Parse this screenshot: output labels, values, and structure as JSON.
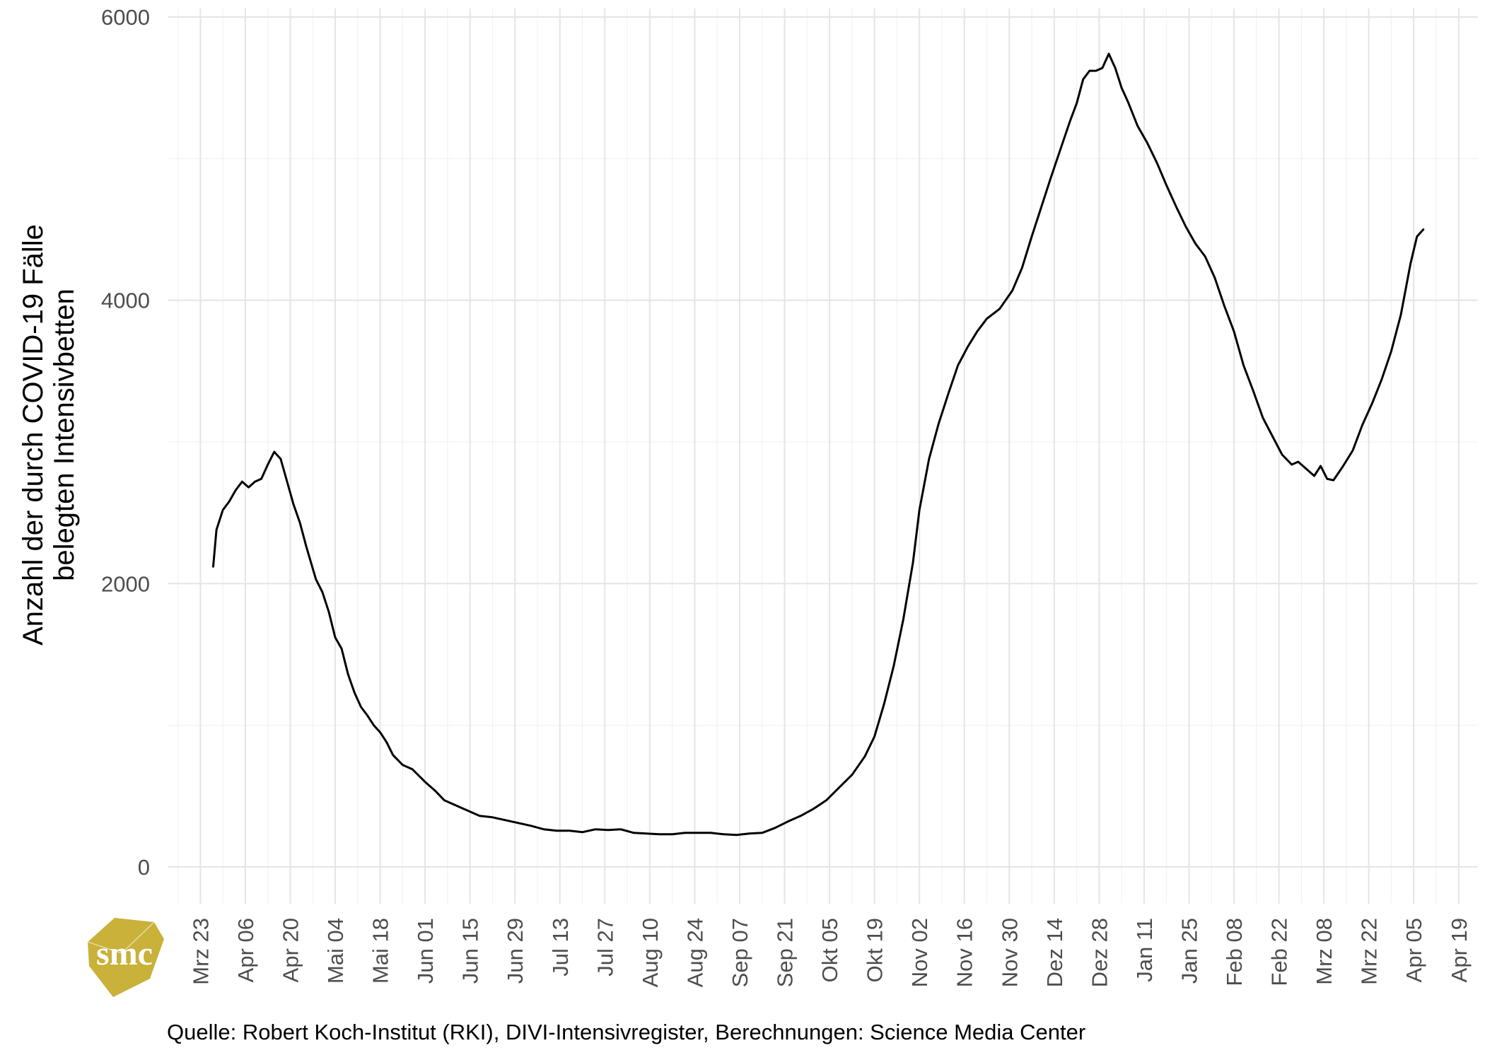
{
  "chart_data": {
    "type": "line",
    "title": "",
    "xlabel": "",
    "ylabel": "Anzahl der durch COVID-19 Fälle\nbelegten Intensivbetten",
    "ylim": [
      -260,
      6060
    ],
    "xlim": [
      "2020-03-13",
      "2021-04-25"
    ],
    "y_ticks": [
      0,
      2000,
      4000,
      6000
    ],
    "x_ticks": [
      {
        "date": "2020-03-23",
        "label": "Mrz 23"
      },
      {
        "date": "2020-04-06",
        "label": "Apr 06"
      },
      {
        "date": "2020-04-20",
        "label": "Apr 20"
      },
      {
        "date": "2020-05-04",
        "label": "Mai 04"
      },
      {
        "date": "2020-05-18",
        "label": "Mai 18"
      },
      {
        "date": "2020-06-01",
        "label": "Jun 01"
      },
      {
        "date": "2020-06-15",
        "label": "Jun 15"
      },
      {
        "date": "2020-06-29",
        "label": "Jun 29"
      },
      {
        "date": "2020-07-13",
        "label": "Jul 13"
      },
      {
        "date": "2020-07-27",
        "label": "Jul 27"
      },
      {
        "date": "2020-08-10",
        "label": "Aug 10"
      },
      {
        "date": "2020-08-24",
        "label": "Aug 24"
      },
      {
        "date": "2020-09-07",
        "label": "Sep 07"
      },
      {
        "date": "2020-09-21",
        "label": "Sep 21"
      },
      {
        "date": "2020-10-05",
        "label": "Okt 05"
      },
      {
        "date": "2020-10-19",
        "label": "Okt 19"
      },
      {
        "date": "2020-11-02",
        "label": "Nov 02"
      },
      {
        "date": "2020-11-16",
        "label": "Nov 16"
      },
      {
        "date": "2020-11-30",
        "label": "Nov 30"
      },
      {
        "date": "2020-12-14",
        "label": "Dez 14"
      },
      {
        "date": "2020-12-28",
        "label": "Dez 28"
      },
      {
        "date": "2021-01-11",
        "label": "Jan 11"
      },
      {
        "date": "2021-01-25",
        "label": "Jan 25"
      },
      {
        "date": "2021-02-08",
        "label": "Feb 08"
      },
      {
        "date": "2021-02-22",
        "label": "Feb 22"
      },
      {
        "date": "2021-03-08",
        "label": "Mrz 08"
      },
      {
        "date": "2021-03-22",
        "label": "Mrz 22"
      },
      {
        "date": "2021-04-05",
        "label": "Apr 05"
      },
      {
        "date": "2021-04-19",
        "label": "Apr 19"
      }
    ],
    "grid": true,
    "legend": "none",
    "series": [
      {
        "color": "#000000",
        "points": [
          [
            "2020-03-27",
            2120
          ],
          [
            "2020-03-28",
            2380
          ],
          [
            "2020-03-30",
            2520
          ],
          [
            "2020-04-01",
            2580
          ],
          [
            "2020-04-03",
            2660
          ],
          [
            "2020-04-05",
            2720
          ],
          [
            "2020-04-07",
            2680
          ],
          [
            "2020-04-09",
            2720
          ],
          [
            "2020-04-11",
            2740
          ],
          [
            "2020-04-13",
            2840
          ],
          [
            "2020-04-15",
            2930
          ],
          [
            "2020-04-17",
            2880
          ],
          [
            "2020-04-19",
            2720
          ],
          [
            "2020-04-21",
            2560
          ],
          [
            "2020-04-23",
            2430
          ],
          [
            "2020-04-25",
            2260
          ],
          [
            "2020-04-28",
            2030
          ],
          [
            "2020-04-30",
            1940
          ],
          [
            "2020-05-02",
            1800
          ],
          [
            "2020-05-04",
            1620
          ],
          [
            "2020-05-06",
            1540
          ],
          [
            "2020-05-08",
            1360
          ],
          [
            "2020-05-10",
            1230
          ],
          [
            "2020-05-12",
            1130
          ],
          [
            "2020-05-14",
            1070
          ],
          [
            "2020-05-16",
            1000
          ],
          [
            "2020-05-18",
            950
          ],
          [
            "2020-05-20",
            880
          ],
          [
            "2020-05-22",
            790
          ],
          [
            "2020-05-25",
            720
          ],
          [
            "2020-05-28",
            690
          ],
          [
            "2020-06-01",
            600
          ],
          [
            "2020-06-04",
            540
          ],
          [
            "2020-06-07",
            470
          ],
          [
            "2020-06-10",
            440
          ],
          [
            "2020-06-14",
            400
          ],
          [
            "2020-06-18",
            360
          ],
          [
            "2020-06-22",
            350
          ],
          [
            "2020-06-26",
            330
          ],
          [
            "2020-06-30",
            310
          ],
          [
            "2020-07-04",
            290
          ],
          [
            "2020-07-08",
            265
          ],
          [
            "2020-07-12",
            255
          ],
          [
            "2020-07-16",
            255
          ],
          [
            "2020-07-20",
            245
          ],
          [
            "2020-07-24",
            265
          ],
          [
            "2020-07-28",
            260
          ],
          [
            "2020-08-01",
            265
          ],
          [
            "2020-08-05",
            240
          ],
          [
            "2020-08-09",
            235
          ],
          [
            "2020-08-13",
            230
          ],
          [
            "2020-08-17",
            230
          ],
          [
            "2020-08-21",
            240
          ],
          [
            "2020-08-25",
            240
          ],
          [
            "2020-08-29",
            240
          ],
          [
            "2020-09-02",
            230
          ],
          [
            "2020-09-06",
            225
          ],
          [
            "2020-09-10",
            235
          ],
          [
            "2020-09-14",
            240
          ],
          [
            "2020-09-18",
            275
          ],
          [
            "2020-09-22",
            320
          ],
          [
            "2020-09-26",
            360
          ],
          [
            "2020-09-30",
            410
          ],
          [
            "2020-10-04",
            470
          ],
          [
            "2020-10-08",
            560
          ],
          [
            "2020-10-12",
            650
          ],
          [
            "2020-10-16",
            780
          ],
          [
            "2020-10-19",
            920
          ],
          [
            "2020-10-22",
            1150
          ],
          [
            "2020-10-25",
            1420
          ],
          [
            "2020-10-28",
            1750
          ],
          [
            "2020-10-31",
            2150
          ],
          [
            "2020-11-02",
            2520
          ],
          [
            "2020-11-05",
            2880
          ],
          [
            "2020-11-08",
            3130
          ],
          [
            "2020-11-11",
            3340
          ],
          [
            "2020-11-14",
            3540
          ],
          [
            "2020-11-17",
            3670
          ],
          [
            "2020-11-20",
            3780
          ],
          [
            "2020-11-23",
            3870
          ],
          [
            "2020-11-27",
            3940
          ],
          [
            "2020-12-01",
            4070
          ],
          [
            "2020-12-04",
            4230
          ],
          [
            "2020-12-07",
            4450
          ],
          [
            "2020-12-10",
            4660
          ],
          [
            "2020-12-13",
            4870
          ],
          [
            "2020-12-16",
            5070
          ],
          [
            "2020-12-19",
            5270
          ],
          [
            "2020-12-21",
            5390
          ],
          [
            "2020-12-23",
            5560
          ],
          [
            "2020-12-25",
            5620
          ],
          [
            "2020-12-27",
            5620
          ],
          [
            "2020-12-29",
            5640
          ],
          [
            "2020-12-31",
            5740
          ],
          [
            "2021-01-02",
            5640
          ],
          [
            "2021-01-04",
            5500
          ],
          [
            "2021-01-06",
            5400
          ],
          [
            "2021-01-09",
            5230
          ],
          [
            "2021-01-12",
            5110
          ],
          [
            "2021-01-15",
            4970
          ],
          [
            "2021-01-18",
            4810
          ],
          [
            "2021-01-21",
            4660
          ],
          [
            "2021-01-24",
            4520
          ],
          [
            "2021-01-27",
            4400
          ],
          [
            "2021-01-30",
            4310
          ],
          [
            "2021-02-02",
            4160
          ],
          [
            "2021-02-05",
            3960
          ],
          [
            "2021-02-08",
            3780
          ],
          [
            "2021-02-11",
            3540
          ],
          [
            "2021-02-14",
            3360
          ],
          [
            "2021-02-17",
            3170
          ],
          [
            "2021-02-20",
            3040
          ],
          [
            "2021-02-23",
            2910
          ],
          [
            "2021-02-26",
            2840
          ],
          [
            "2021-02-28",
            2860
          ],
          [
            "2021-03-02",
            2820
          ],
          [
            "2021-03-05",
            2760
          ],
          [
            "2021-03-07",
            2830
          ],
          [
            "2021-03-09",
            2740
          ],
          [
            "2021-03-11",
            2730
          ],
          [
            "2021-03-14",
            2830
          ],
          [
            "2021-03-17",
            2940
          ],
          [
            "2021-03-20",
            3120
          ],
          [
            "2021-03-23",
            3270
          ],
          [
            "2021-03-26",
            3440
          ],
          [
            "2021-03-29",
            3640
          ],
          [
            "2021-04-01",
            3900
          ],
          [
            "2021-04-04",
            4260
          ],
          [
            "2021-04-06",
            4450
          ],
          [
            "2021-04-08",
            4500
          ]
        ]
      }
    ]
  },
  "caption": "Quelle: Robert Koch-Institut (RKI), DIVI-Intensivregister, Berechnungen: Science Media Center",
  "logo": {
    "text": "smc",
    "color": "#c9b13a"
  }
}
